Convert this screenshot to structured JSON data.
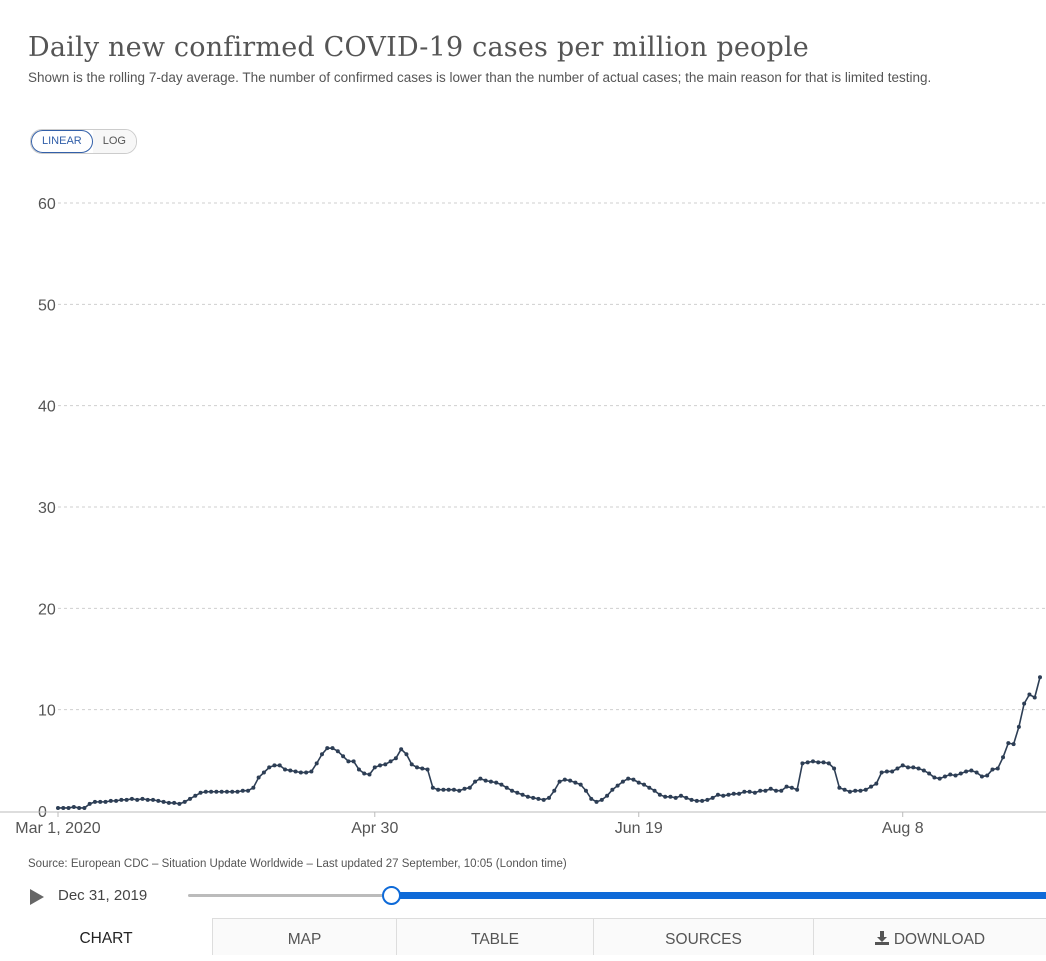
{
  "header": {
    "title": "Daily new confirmed COVID-19 cases per million people",
    "subtitle": "Shown is the rolling 7-day average. The number of confirmed cases is lower than the number of actual cases; the main reason for that is limited testing."
  },
  "scale_toggle": {
    "linear_label": "LINEAR",
    "log_label": "LOG",
    "selected": "LINEAR"
  },
  "chart_data": {
    "type": "line",
    "title": "Daily new confirmed COVID-19 cases per million people",
    "xlabel": "",
    "ylabel": "",
    "ylim": [
      0,
      60
    ],
    "yticks": [
      0,
      10,
      20,
      30,
      40,
      50,
      60
    ],
    "grid": "horizontal dashed",
    "x_start": "Mar 1, 2020",
    "x_end": "Sep 26, 2020",
    "xticks": [
      {
        "label": "Mar 1, 2020",
        "date": "2020-03-01"
      },
      {
        "label": "Apr 30",
        "date": "2020-04-30"
      },
      {
        "label": "Jun 19",
        "date": "2020-06-19"
      },
      {
        "label": "Aug 8",
        "date": "2020-08-08"
      }
    ],
    "series": [
      {
        "name": "",
        "color": "#2d3e55",
        "values": [
          0.3,
          0.3,
          0.3,
          0.4,
          0.3,
          0.3,
          0.7,
          0.9,
          0.9,
          0.9,
          1.0,
          1.0,
          1.1,
          1.1,
          1.2,
          1.1,
          1.2,
          1.1,
          1.1,
          1.0,
          0.9,
          0.8,
          0.8,
          0.7,
          0.9,
          1.2,
          1.5,
          1.8,
          1.9,
          1.9,
          1.9,
          1.9,
          1.9,
          1.9,
          1.9,
          2.0,
          2.0,
          2.3,
          3.3,
          3.8,
          4.3,
          4.5,
          4.5,
          4.1,
          4.0,
          3.9,
          3.8,
          3.8,
          3.9,
          4.7,
          5.6,
          6.2,
          6.2,
          5.9,
          5.4,
          4.9,
          4.9,
          4.1,
          3.7,
          3.6,
          4.3,
          4.5,
          4.6,
          4.9,
          5.2,
          6.1,
          5.6,
          4.6,
          4.3,
          4.2,
          4.1,
          2.3,
          2.1,
          2.1,
          2.1,
          2.1,
          2.0,
          2.2,
          2.3,
          2.9,
          3.2,
          3.0,
          2.9,
          2.8,
          2.6,
          2.3,
          2.0,
          1.8,
          1.6,
          1.4,
          1.3,
          1.2,
          1.1,
          1.3,
          2.0,
          2.9,
          3.1,
          3.0,
          2.8,
          2.6,
          2.0,
          1.2,
          0.9,
          1.1,
          1.5,
          2.1,
          2.5,
          2.9,
          3.2,
          3.1,
          2.8,
          2.6,
          2.3,
          2.0,
          1.6,
          1.4,
          1.4,
          1.3,
          1.5,
          1.3,
          1.1,
          1.0,
          1.0,
          1.1,
          1.3,
          1.6,
          1.5,
          1.6,
          1.7,
          1.7,
          1.9,
          1.9,
          1.8,
          2.0,
          2.0,
          2.2,
          2.0,
          2.0,
          2.4,
          2.3,
          2.1,
          4.7,
          4.8,
          4.9,
          4.8,
          4.8,
          4.7,
          4.2,
          2.3,
          2.1,
          1.9,
          2.0,
          2.0,
          2.1,
          2.4,
          2.7,
          3.8,
          3.9,
          3.9,
          4.2,
          4.5,
          4.3,
          4.3,
          4.2,
          4.0,
          3.7,
          3.3,
          3.2,
          3.4,
          3.6,
          3.5,
          3.7,
          3.9,
          4.0,
          3.8,
          3.4,
          3.5,
          4.1,
          4.2,
          5.3,
          6.7,
          6.6,
          8.3,
          10.6,
          11.5,
          11.2,
          13.2
        ]
      }
    ],
    "source": "Source: European CDC – Situation Update Worldwide – Last updated 27 September, 10:05 (London time)"
  },
  "timeline": {
    "play_icon": "play-icon",
    "start_date": "Dec 31, 2019",
    "position": 0.24
  },
  "tabs": [
    {
      "label": "CHART",
      "active": true
    },
    {
      "label": "MAP",
      "active": false
    },
    {
      "label": "TABLE",
      "active": false
    },
    {
      "label": "SOURCES",
      "active": false
    },
    {
      "label": "DOWNLOAD",
      "icon": "download-icon",
      "active": false
    }
  ]
}
